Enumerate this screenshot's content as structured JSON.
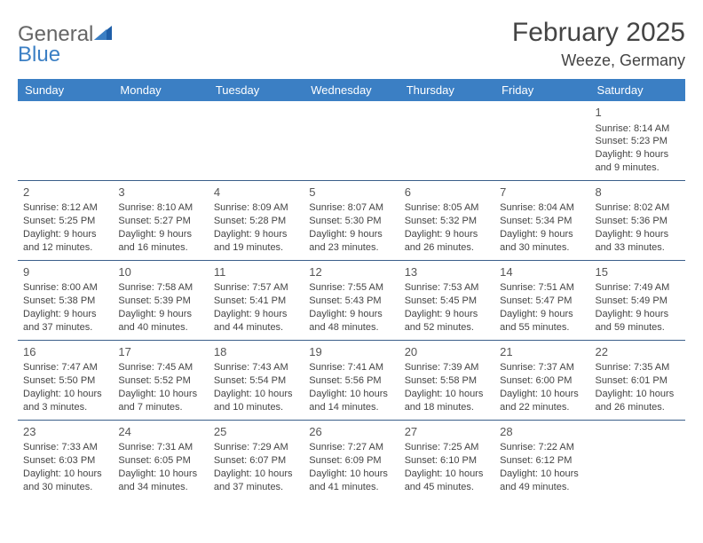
{
  "logo": {
    "part1": "General",
    "part2": "Blue"
  },
  "title": "February 2025",
  "location": "Weeze, Germany",
  "colors": {
    "header_bg": "#3b7fc4",
    "header_text": "#ffffff",
    "rule": "#3b5f8a",
    "text": "#444444"
  },
  "dow": [
    "Sunday",
    "Monday",
    "Tuesday",
    "Wednesday",
    "Thursday",
    "Friday",
    "Saturday"
  ],
  "weeks": [
    [
      null,
      null,
      null,
      null,
      null,
      null,
      {
        "n": "1",
        "sr": "Sunrise: 8:14 AM",
        "ss": "Sunset: 5:23 PM",
        "d1": "Daylight: 9 hours",
        "d2": "and 9 minutes."
      }
    ],
    [
      {
        "n": "2",
        "sr": "Sunrise: 8:12 AM",
        "ss": "Sunset: 5:25 PM",
        "d1": "Daylight: 9 hours",
        "d2": "and 12 minutes."
      },
      {
        "n": "3",
        "sr": "Sunrise: 8:10 AM",
        "ss": "Sunset: 5:27 PM",
        "d1": "Daylight: 9 hours",
        "d2": "and 16 minutes."
      },
      {
        "n": "4",
        "sr": "Sunrise: 8:09 AM",
        "ss": "Sunset: 5:28 PM",
        "d1": "Daylight: 9 hours",
        "d2": "and 19 minutes."
      },
      {
        "n": "5",
        "sr": "Sunrise: 8:07 AM",
        "ss": "Sunset: 5:30 PM",
        "d1": "Daylight: 9 hours",
        "d2": "and 23 minutes."
      },
      {
        "n": "6",
        "sr": "Sunrise: 8:05 AM",
        "ss": "Sunset: 5:32 PM",
        "d1": "Daylight: 9 hours",
        "d2": "and 26 minutes."
      },
      {
        "n": "7",
        "sr": "Sunrise: 8:04 AM",
        "ss": "Sunset: 5:34 PM",
        "d1": "Daylight: 9 hours",
        "d2": "and 30 minutes."
      },
      {
        "n": "8",
        "sr": "Sunrise: 8:02 AM",
        "ss": "Sunset: 5:36 PM",
        "d1": "Daylight: 9 hours",
        "d2": "and 33 minutes."
      }
    ],
    [
      {
        "n": "9",
        "sr": "Sunrise: 8:00 AM",
        "ss": "Sunset: 5:38 PM",
        "d1": "Daylight: 9 hours",
        "d2": "and 37 minutes."
      },
      {
        "n": "10",
        "sr": "Sunrise: 7:58 AM",
        "ss": "Sunset: 5:39 PM",
        "d1": "Daylight: 9 hours",
        "d2": "and 40 minutes."
      },
      {
        "n": "11",
        "sr": "Sunrise: 7:57 AM",
        "ss": "Sunset: 5:41 PM",
        "d1": "Daylight: 9 hours",
        "d2": "and 44 minutes."
      },
      {
        "n": "12",
        "sr": "Sunrise: 7:55 AM",
        "ss": "Sunset: 5:43 PM",
        "d1": "Daylight: 9 hours",
        "d2": "and 48 minutes."
      },
      {
        "n": "13",
        "sr": "Sunrise: 7:53 AM",
        "ss": "Sunset: 5:45 PM",
        "d1": "Daylight: 9 hours",
        "d2": "and 52 minutes."
      },
      {
        "n": "14",
        "sr": "Sunrise: 7:51 AM",
        "ss": "Sunset: 5:47 PM",
        "d1": "Daylight: 9 hours",
        "d2": "and 55 minutes."
      },
      {
        "n": "15",
        "sr": "Sunrise: 7:49 AM",
        "ss": "Sunset: 5:49 PM",
        "d1": "Daylight: 9 hours",
        "d2": "and 59 minutes."
      }
    ],
    [
      {
        "n": "16",
        "sr": "Sunrise: 7:47 AM",
        "ss": "Sunset: 5:50 PM",
        "d1": "Daylight: 10 hours",
        "d2": "and 3 minutes."
      },
      {
        "n": "17",
        "sr": "Sunrise: 7:45 AM",
        "ss": "Sunset: 5:52 PM",
        "d1": "Daylight: 10 hours",
        "d2": "and 7 minutes."
      },
      {
        "n": "18",
        "sr": "Sunrise: 7:43 AM",
        "ss": "Sunset: 5:54 PM",
        "d1": "Daylight: 10 hours",
        "d2": "and 10 minutes."
      },
      {
        "n": "19",
        "sr": "Sunrise: 7:41 AM",
        "ss": "Sunset: 5:56 PM",
        "d1": "Daylight: 10 hours",
        "d2": "and 14 minutes."
      },
      {
        "n": "20",
        "sr": "Sunrise: 7:39 AM",
        "ss": "Sunset: 5:58 PM",
        "d1": "Daylight: 10 hours",
        "d2": "and 18 minutes."
      },
      {
        "n": "21",
        "sr": "Sunrise: 7:37 AM",
        "ss": "Sunset: 6:00 PM",
        "d1": "Daylight: 10 hours",
        "d2": "and 22 minutes."
      },
      {
        "n": "22",
        "sr": "Sunrise: 7:35 AM",
        "ss": "Sunset: 6:01 PM",
        "d1": "Daylight: 10 hours",
        "d2": "and 26 minutes."
      }
    ],
    [
      {
        "n": "23",
        "sr": "Sunrise: 7:33 AM",
        "ss": "Sunset: 6:03 PM",
        "d1": "Daylight: 10 hours",
        "d2": "and 30 minutes."
      },
      {
        "n": "24",
        "sr": "Sunrise: 7:31 AM",
        "ss": "Sunset: 6:05 PM",
        "d1": "Daylight: 10 hours",
        "d2": "and 34 minutes."
      },
      {
        "n": "25",
        "sr": "Sunrise: 7:29 AM",
        "ss": "Sunset: 6:07 PM",
        "d1": "Daylight: 10 hours",
        "d2": "and 37 minutes."
      },
      {
        "n": "26",
        "sr": "Sunrise: 7:27 AM",
        "ss": "Sunset: 6:09 PM",
        "d1": "Daylight: 10 hours",
        "d2": "and 41 minutes."
      },
      {
        "n": "27",
        "sr": "Sunrise: 7:25 AM",
        "ss": "Sunset: 6:10 PM",
        "d1": "Daylight: 10 hours",
        "d2": "and 45 minutes."
      },
      {
        "n": "28",
        "sr": "Sunrise: 7:22 AM",
        "ss": "Sunset: 6:12 PM",
        "d1": "Daylight: 10 hours",
        "d2": "and 49 minutes."
      },
      null
    ]
  ]
}
